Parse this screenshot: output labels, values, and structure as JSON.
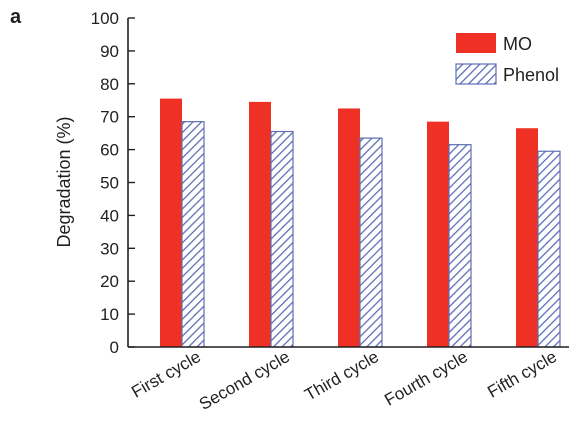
{
  "panel_label": "a",
  "colors": {
    "mo": "#ee3124",
    "phenol_stroke": "#5d6fb4",
    "phenol_fill": "#ffffff",
    "axis": "#231f20"
  },
  "chart_data": {
    "type": "bar",
    "title": "",
    "xlabel": "",
    "ylabel": "Degradation (%)",
    "ylim": [
      0,
      100
    ],
    "yticks": [
      0,
      10,
      20,
      30,
      40,
      50,
      60,
      70,
      80,
      90,
      100
    ],
    "categories": [
      "First cycle",
      "Second cycle",
      "Third cycle",
      "Fourth cycle",
      "Fifth cycle"
    ],
    "series": [
      {
        "name": "MO",
        "values": [
          75.5,
          74.5,
          72.5,
          68.5,
          66.5
        ],
        "style": "solid"
      },
      {
        "name": "Phenol",
        "values": [
          68.5,
          65.5,
          63.5,
          61.5,
          59.5
        ],
        "style": "hatched"
      }
    ],
    "legend": "top-right",
    "grid": false
  }
}
